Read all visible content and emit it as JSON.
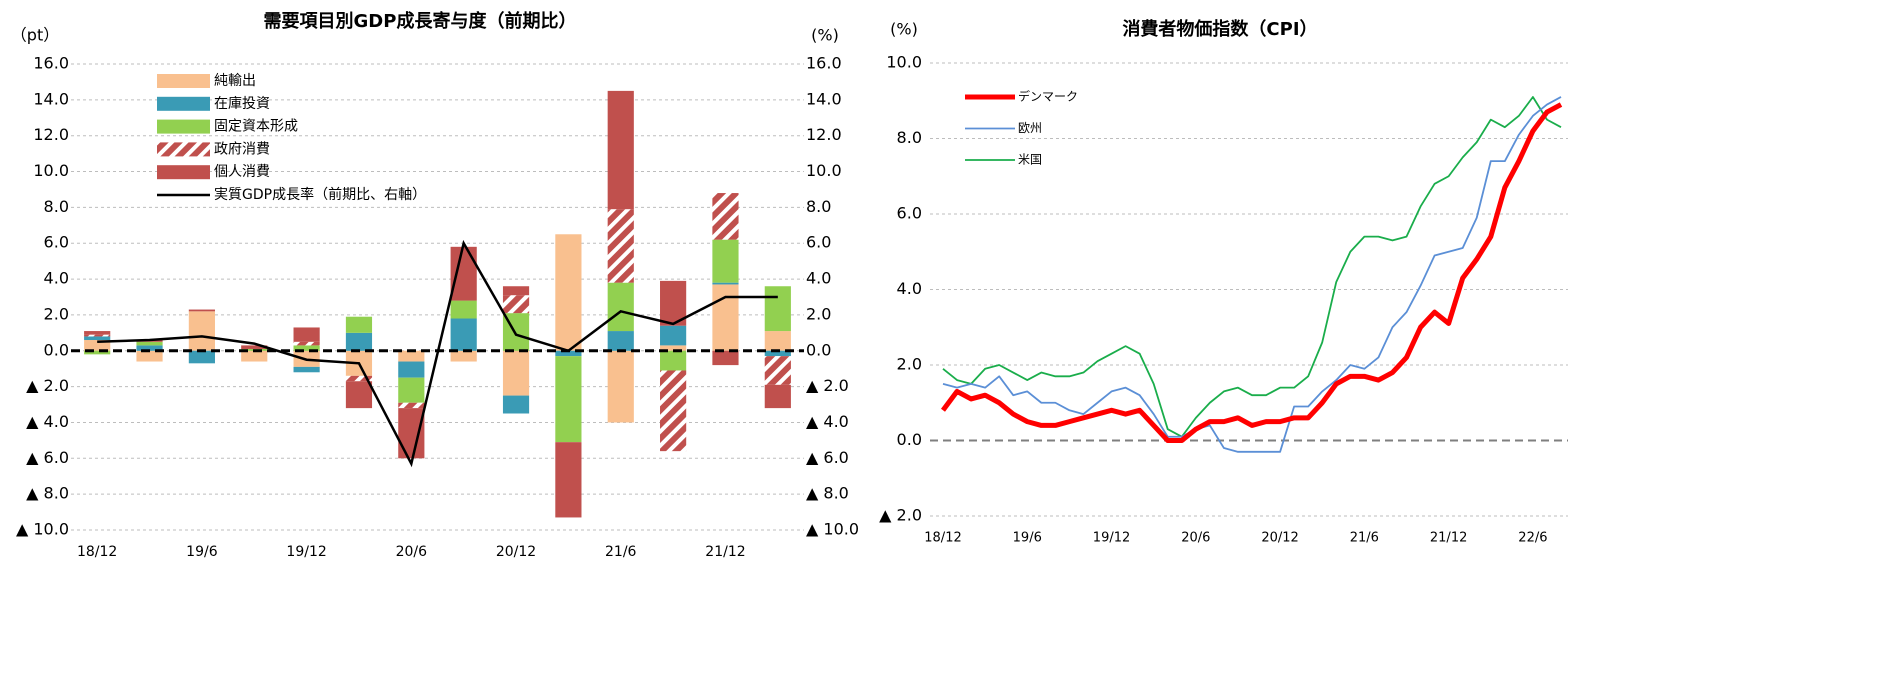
{
  "chart_data": [
    {
      "type": "bar",
      "stacked": true,
      "title": "需要項目別GDP成長寄与度（前期比）",
      "y_label": "（pt）",
      "y2_label": "(%)",
      "categories": [
        "18/12",
        null,
        "19/6",
        null,
        "19/12",
        null,
        "20/6",
        null,
        "20/12",
        null,
        "21/6",
        null,
        "21/12",
        null
      ],
      "ylim": [
        -10,
        16
      ],
      "y2lim": [
        -10,
        16
      ],
      "yticks": [
        {
          "value": 16,
          "label": "16.0"
        },
        {
          "value": 14,
          "label": "14.0"
        },
        {
          "value": 12,
          "label": "12.0"
        },
        {
          "value": 10,
          "label": "10.0"
        },
        {
          "value": 8,
          "label": "8.0"
        },
        {
          "value": 6,
          "label": "6.0"
        },
        {
          "value": 4,
          "label": "4.0"
        },
        {
          "value": 2,
          "label": "2.0"
        },
        {
          "value": 0,
          "label": "0.0"
        },
        {
          "value": -2,
          "label": "▲ 2.0"
        },
        {
          "value": -4,
          "label": "▲ 4.0"
        },
        {
          "value": -6,
          "label": "▲ 6.0"
        },
        {
          "value": -8,
          "label": "▲ 8.0"
        },
        {
          "value": -10,
          "label": "▲ 10.0"
        }
      ],
      "y2ticks": [
        {
          "value": 16,
          "label": "16.0"
        },
        {
          "value": 14,
          "label": "14.0"
        },
        {
          "value": 12,
          "label": "12.0"
        },
        {
          "value": 10,
          "label": "10.0"
        },
        {
          "value": 8,
          "label": "8.0"
        },
        {
          "value": 6,
          "label": "6.0"
        },
        {
          "value": 4,
          "label": "4.0"
        },
        {
          "value": 2,
          "label": "2.0"
        },
        {
          "value": 0,
          "label": "0.0"
        },
        {
          "value": -2,
          "label": "▲ 2.0"
        },
        {
          "value": -4,
          "label": "▲ 4.0"
        },
        {
          "value": -6,
          "label": "▲ 6.0"
        },
        {
          "value": -8,
          "label": "▲ 8.0"
        },
        {
          "value": -10,
          "label": "▲ 10.0"
        }
      ],
      "grid": true,
      "legend": "upper left",
      "series": [
        {
          "name": "純輸出",
          "color": "#f9c08f",
          "values": [
            0.6,
            -0.6,
            2.2,
            -0.6,
            -0.9,
            -1.4,
            -0.6,
            -0.6,
            -2.5,
            6.5,
            -4.0,
            0.3,
            3.7,
            1.1
          ]
        },
        {
          "name": "在庫投資",
          "color": "#3a9bb5",
          "values": [
            0.2,
            0.3,
            -0.7,
            0.0,
            -0.3,
            1.0,
            -0.9,
            1.8,
            -1.0,
            -0.3,
            1.1,
            1.1,
            0.1,
            -0.3
          ]
        },
        {
          "name": "固定資本形成",
          "color": "#92d050",
          "values": [
            -0.2,
            0.2,
            0.0,
            0.1,
            0.3,
            0.9,
            -1.4,
            1.0,
            2.1,
            -4.8,
            2.7,
            -1.1,
            2.4,
            2.5
          ]
        },
        {
          "name": "政府消費",
          "color": "#c0504d",
          "pattern": "hatch",
          "values": [
            0.1,
            0.0,
            0.0,
            0.0,
            0.2,
            -0.3,
            -0.3,
            0.0,
            1.0,
            0.0,
            4.1,
            -4.5,
            2.6,
            -1.6
          ]
        },
        {
          "name": "個人消費",
          "color": "#c0504d",
          "values": [
            0.2,
            0.1,
            0.1,
            0.2,
            0.8,
            -1.5,
            -2.8,
            3.0,
            0.5,
            -4.2,
            6.6,
            2.5,
            -0.8,
            -1.3
          ]
        },
        {
          "name": "実質GDP成長率（前期比、右軸）",
          "type": "line",
          "axis": "y2",
          "color": "#000000",
          "values": [
            0.5,
            0.6,
            0.8,
            0.4,
            -0.5,
            -0.7,
            -6.3,
            6.0,
            0.9,
            0.0,
            2.2,
            1.5,
            3.0,
            3.0
          ]
        }
      ]
    },
    {
      "type": "line",
      "title": "消費者物価指数（CPI）",
      "y_label": "(%)",
      "categories": [
        "18/12",
        null,
        null,
        null,
        null,
        null,
        "19/6",
        null,
        null,
        null,
        null,
        null,
        "19/12",
        null,
        null,
        null,
        null,
        null,
        "20/6",
        null,
        null,
        null,
        null,
        null,
        "20/12",
        null,
        null,
        null,
        null,
        null,
        "21/6",
        null,
        null,
        null,
        null,
        null,
        "21/12",
        null,
        null,
        null,
        null,
        null,
        "22/6",
        null,
        null
      ],
      "ylim": [
        -2,
        10
      ],
      "yticks": [
        {
          "value": 10,
          "label": "10.0"
        },
        {
          "value": 8,
          "label": "8.0"
        },
        {
          "value": 6,
          "label": "6.0"
        },
        {
          "value": 4,
          "label": "4.0"
        },
        {
          "value": 2,
          "label": "2.0"
        },
        {
          "value": 0,
          "label": "0.0"
        },
        {
          "value": -2,
          "label": "▲ 2.0"
        }
      ],
      "grid": true,
      "legend": "upper left",
      "series": [
        {
          "name": "デンマーク",
          "color": "#ff0000",
          "values": [
            0.8,
            1.3,
            1.1,
            1.2,
            1.0,
            0.7,
            0.5,
            0.4,
            0.4,
            0.5,
            0.6,
            0.7,
            0.8,
            0.7,
            0.8,
            0.4,
            0.0,
            0.0,
            0.3,
            0.5,
            0.5,
            0.6,
            0.4,
            0.5,
            0.5,
            0.6,
            0.6,
            1.0,
            1.5,
            1.7,
            1.7,
            1.6,
            1.8,
            2.2,
            3.0,
            3.4,
            3.1,
            4.3,
            4.8,
            5.4,
            6.7,
            7.4,
            8.2,
            8.7,
            8.9
          ]
        },
        {
          "name": "欧州",
          "color": "#5b8fd6",
          "values": [
            1.5,
            1.4,
            1.5,
            1.4,
            1.7,
            1.2,
            1.3,
            1.0,
            1.0,
            0.8,
            0.7,
            1.0,
            1.3,
            1.4,
            1.2,
            0.7,
            0.1,
            0.1,
            0.3,
            0.4,
            -0.2,
            -0.3,
            -0.3,
            -0.3,
            -0.3,
            0.9,
            0.9,
            1.3,
            1.6,
            2.0,
            1.9,
            2.2,
            3.0,
            3.4,
            4.1,
            4.9,
            5.0,
            5.1,
            5.9,
            7.4,
            7.4,
            8.1,
            8.6,
            8.9,
            9.1
          ]
        },
        {
          "name": "米国",
          "color": "#1aad4b",
          "values": [
            1.9,
            1.6,
            1.5,
            1.9,
            2.0,
            1.8,
            1.6,
            1.8,
            1.7,
            1.7,
            1.8,
            2.1,
            2.3,
            2.5,
            2.3,
            1.5,
            0.3,
            0.1,
            0.6,
            1.0,
            1.3,
            1.4,
            1.2,
            1.2,
            1.4,
            1.4,
            1.7,
            2.6,
            4.2,
            5.0,
            5.4,
            5.4,
            5.3,
            5.4,
            6.2,
            6.8,
            7.0,
            7.5,
            7.9,
            8.5,
            8.3,
            8.6,
            9.1,
            8.5,
            8.3
          ]
        }
      ]
    }
  ]
}
